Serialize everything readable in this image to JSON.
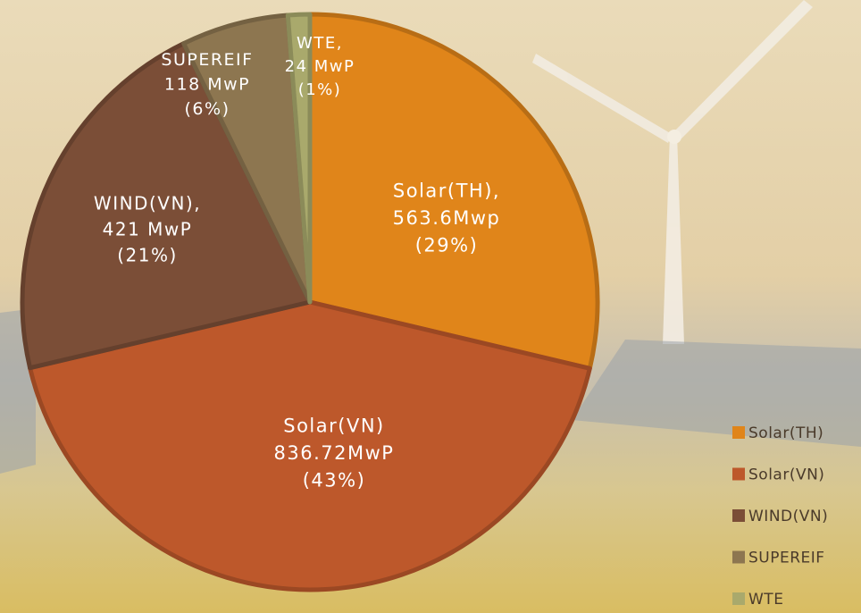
{
  "chart_data": {
    "type": "pie",
    "categories": [
      "Solar(TH)",
      "Solar(VN)",
      "WIND(VN)",
      "SUPEREIF",
      "WTE"
    ],
    "values": [
      563.6,
      836.72,
      421,
      118,
      24
    ],
    "value_labels": [
      [
        "Solar(TH),",
        "563.6Mwp",
        "(29%)"
      ],
      [
        "Solar(VN)",
        "836.72MwP",
        "(43%)"
      ],
      [
        "WIND(VN),",
        "421 MwP",
        "(21%)"
      ],
      [
        "SUPEREIF",
        "118 MwP",
        "(6%)"
      ],
      [
        "WTE,",
        "24 MwP",
        "(1%)"
      ]
    ],
    "colors": [
      "#e0851a",
      "#bd582b",
      "#7b4e37",
      "#8d7650",
      "#a9a96c"
    ],
    "legend": "right"
  }
}
